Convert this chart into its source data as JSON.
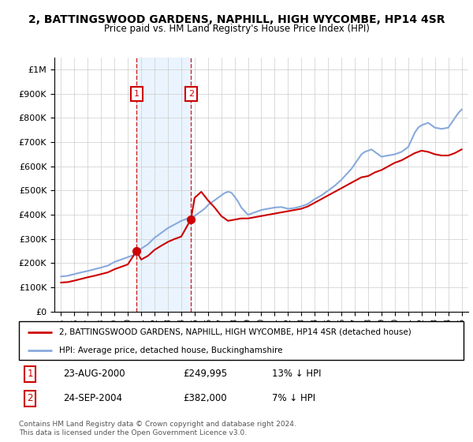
{
  "title": "2, BATTINGSWOOD GARDENS, NAPHILL, HIGH WYCOMBE, HP14 4SR",
  "subtitle": "Price paid vs. HM Land Registry's House Price Index (HPI)",
  "sale1_date": 2000.65,
  "sale1_price": 249995,
  "sale2_date": 2004.73,
  "sale2_price": 382000,
  "legend_red": "2, BATTINGSWOOD GARDENS, NAPHILL, HIGH WYCOMBE, HP14 4SR (detached house)",
  "legend_blue": "HPI: Average price, detached house, Buckinghamshire",
  "footnote": "Contains HM Land Registry data © Crown copyright and database right 2024.\nThis data is licensed under the Open Government Licence v3.0.",
  "red_color": "#cc0000",
  "blue_color": "#88aadd",
  "shade_color": "#ddeeff",
  "ylim_max": 1050000,
  "xlim_min": 1994.5,
  "xlim_max": 2025.5,
  "hpi_years": [
    1995,
    1995.5,
    1996,
    1996.5,
    1997,
    1997.5,
    1998,
    1998.5,
    1999,
    1999.5,
    2000,
    2000.5,
    2001,
    2001.5,
    2002,
    2002.5,
    2003,
    2003.5,
    2004,
    2004.5,
    2005,
    2005.25,
    2005.5,
    2005.75,
    2006,
    2006.5,
    2007,
    2007.25,
    2007.5,
    2007.75,
    2008,
    2008.25,
    2008.5,
    2008.75,
    2009,
    2009.5,
    2010,
    2010.5,
    2011,
    2011.5,
    2012,
    2012.5,
    2013,
    2013.5,
    2014,
    2014.5,
    2015,
    2015.5,
    2016,
    2016.25,
    2016.5,
    2016.75,
    2017,
    2017.25,
    2017.5,
    2017.75,
    2018,
    2018.25,
    2018.5,
    2018.75,
    2019,
    2019.5,
    2020,
    2020.5,
    2021,
    2021.25,
    2021.5,
    2021.75,
    2022,
    2022.25,
    2022.5,
    2022.75,
    2023,
    2023.5,
    2024,
    2024.25,
    2024.5,
    2024.75,
    2025
  ],
  "hpi_vals": [
    145000,
    148000,
    155000,
    162000,
    168000,
    175000,
    182000,
    190000,
    205000,
    215000,
    225000,
    235000,
    260000,
    278000,
    305000,
    325000,
    345000,
    360000,
    375000,
    385000,
    395000,
    405000,
    415000,
    425000,
    440000,
    460000,
    480000,
    490000,
    495000,
    492000,
    475000,
    455000,
    430000,
    415000,
    400000,
    410000,
    420000,
    425000,
    430000,
    432000,
    425000,
    428000,
    435000,
    445000,
    465000,
    480000,
    500000,
    520000,
    545000,
    560000,
    575000,
    590000,
    610000,
    630000,
    650000,
    660000,
    665000,
    670000,
    660000,
    650000,
    640000,
    645000,
    650000,
    660000,
    680000,
    710000,
    740000,
    760000,
    770000,
    775000,
    780000,
    770000,
    760000,
    755000,
    760000,
    780000,
    800000,
    820000,
    835000
  ],
  "red_years": [
    1995,
    1995.5,
    1996,
    1996.5,
    1997,
    1997.5,
    1998,
    1998.5,
    1999,
    1999.5,
    2000,
    2000.65,
    2001,
    2001.5,
    2002,
    2002.5,
    2003,
    2003.5,
    2004,
    2004.73,
    2005,
    2005.5,
    2006,
    2006.5,
    2007,
    2007.25,
    2007.5,
    2008,
    2008.5,
    2009,
    2009.5,
    2010,
    2010.5,
    2011,
    2011.5,
    2012,
    2012.5,
    2013,
    2013.5,
    2014,
    2014.5,
    2015,
    2015.5,
    2016,
    2016.5,
    2017,
    2017.5,
    2018,
    2018.5,
    2019,
    2019.5,
    2020,
    2020.5,
    2021,
    2021.5,
    2022,
    2022.5,
    2023,
    2023.5,
    2024,
    2024.5,
    2025
  ],
  "red_vals": [
    120000,
    122000,
    128000,
    135000,
    142000,
    148000,
    155000,
    162000,
    175000,
    185000,
    195000,
    249995,
    215000,
    230000,
    255000,
    272000,
    288000,
    300000,
    310000,
    382000,
    470000,
    495000,
    460000,
    430000,
    395000,
    385000,
    375000,
    380000,
    385000,
    385000,
    390000,
    395000,
    400000,
    405000,
    410000,
    415000,
    420000,
    425000,
    435000,
    450000,
    465000,
    480000,
    495000,
    510000,
    525000,
    540000,
    555000,
    560000,
    575000,
    585000,
    600000,
    615000,
    625000,
    640000,
    655000,
    665000,
    660000,
    650000,
    645000,
    645000,
    655000,
    670000
  ]
}
